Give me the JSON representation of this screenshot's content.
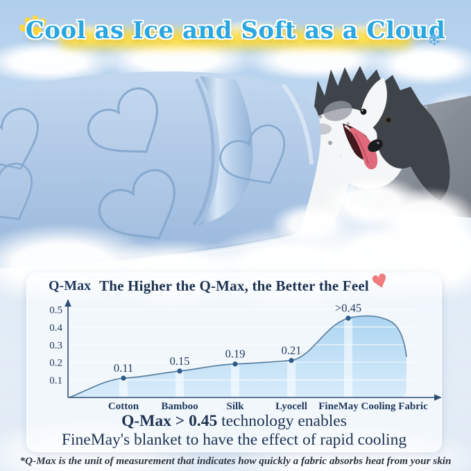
{
  "headline": {
    "text": "Cool as Ice and Soft as a Cloud",
    "snowflake_char": "❄",
    "left_icon": "paw-icon",
    "text_color": "#2aa7e1",
    "glow_color": "#ffdd3c"
  },
  "panel": {
    "heart_char": "♥",
    "heart_color": "#ef7d7d"
  },
  "chart_data": {
    "type": "area",
    "title": "The Higher the Q-Max, the Better the Feel",
    "ylabel": "Q-Max",
    "xlabel": "",
    "categories": [
      "Cotton",
      "Bamboo",
      "Silk",
      "Lyocell",
      "FineMay Cooling Fabric"
    ],
    "values": [
      0.11,
      0.15,
      0.19,
      0.21,
      0.45
    ],
    "point_labels": [
      "0.11",
      "0.15",
      "0.19",
      "0.21",
      ">0.45"
    ],
    "y_ticks": [
      0.1,
      0.2,
      0.3,
      0.4,
      0.5
    ],
    "ylim": [
      0,
      0.5
    ],
    "grid": true,
    "legend_position": "none",
    "area_fill_top": "#a6d2f0",
    "area_fill_bottom": "#d6ebfb",
    "line_color": "#587f9f",
    "dot_color": "#2b5c8a",
    "text_color": "#22395c"
  },
  "caption": {
    "line1_bold": "Q-Max > 0.45",
    "line1_rest": " technology enables",
    "line2": "FineMay's blanket to have the effect of rapid cooling"
  },
  "footnote": "*Q-Max is the unit of measurement that indicates how quickly a fabric absorbs heat from your skin"
}
